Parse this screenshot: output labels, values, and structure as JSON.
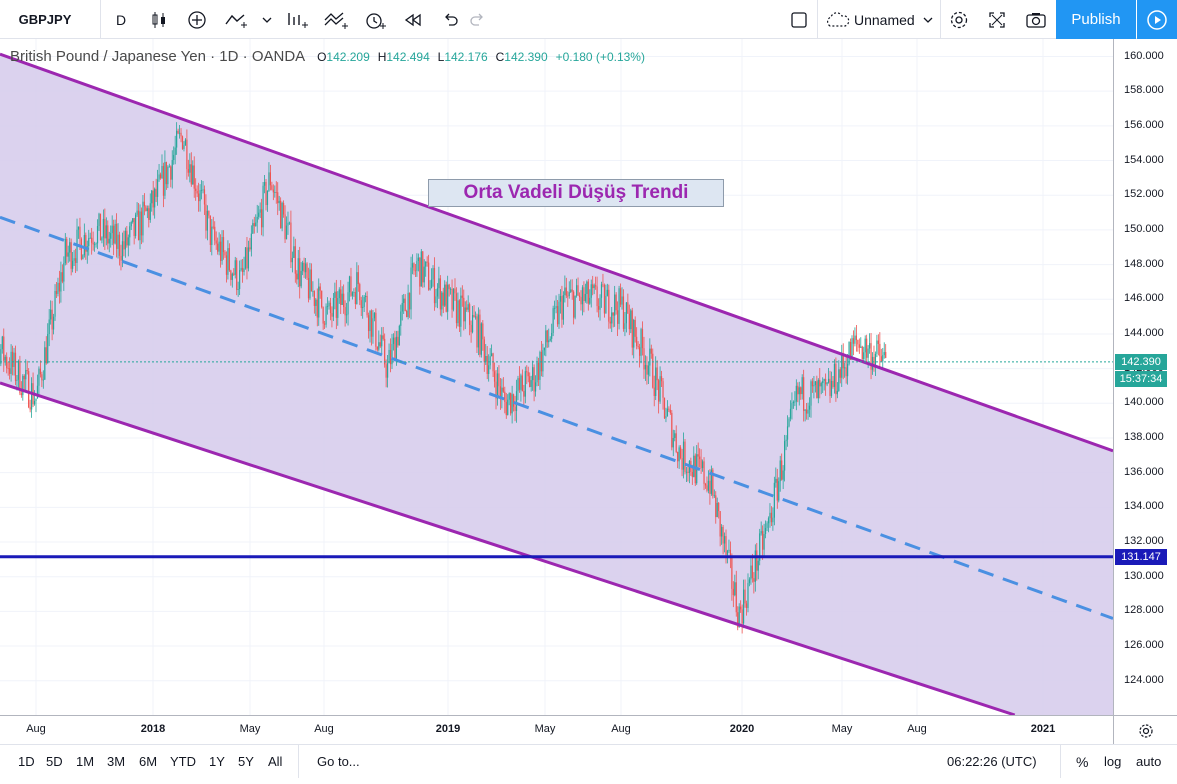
{
  "toolbar": {
    "symbol": "GBPJPY",
    "interval": "D",
    "layout_name": "Unnamed",
    "publish_label": "Publish"
  },
  "legend": {
    "title": "British Pound / Japanese Yen · 1D · OANDA",
    "o_key": "O",
    "o_val": "142.209",
    "h_key": "H",
    "h_val": "142.494",
    "l_key": "L",
    "l_val": "142.176",
    "c_key": "C",
    "c_val": "142.390",
    "change": "+0.180 (+0.13%)"
  },
  "annotation": "Orta Vadeli Düşüş Trendi",
  "price_axis": {
    "ticks": [
      "160.000",
      "158.000",
      "156.000",
      "154.000",
      "152.000",
      "150.000",
      "148.000",
      "146.000",
      "144.000",
      "142.000",
      "140.000",
      "138.000",
      "136.000",
      "134.000",
      "132.000",
      "130.000",
      "128.000",
      "126.000",
      "124.000"
    ],
    "last_price": "142.390",
    "countdown": "15:37:34",
    "hline_price": "131.147"
  },
  "time_axis": [
    "Aug",
    "2018",
    "May",
    "Aug",
    "2019",
    "May",
    "Aug",
    "2020",
    "May",
    "Aug",
    "2021"
  ],
  "bottom": {
    "ranges": [
      "1D",
      "5D",
      "1M",
      "3M",
      "6M",
      "YTD",
      "1Y",
      "5Y",
      "All"
    ],
    "goto": "Go to...",
    "clock": "06:22:26 (UTC)",
    "percent": "%",
    "log": "log",
    "auto": "auto"
  },
  "colors": {
    "up": "#26a69a",
    "down": "#ef5350",
    "channel": "#9c27b0",
    "channel_fill": "#d7cdec",
    "midline": "#4a90e2",
    "hline": "#1a1ab8",
    "accent": "#2196f3"
  },
  "chart_data": {
    "type": "candlestick",
    "symbol": "GBPJPY",
    "ylim": [
      122.5,
      161.0
    ],
    "x_labels": [
      "Aug",
      "2018",
      "May",
      "Aug",
      "2019",
      "May",
      "Aug",
      "2020",
      "May",
      "Aug",
      "2021"
    ],
    "horizontal_line": 131.147,
    "last_price": 142.39,
    "channel": {
      "upper": [
        {
          "date": "2017-06",
          "price": 160.6
        },
        {
          "date": "2018-01",
          "price": 156.8
        },
        {
          "date": "2019-03",
          "price": 148.6
        },
        {
          "date": "2020-01",
          "price": 143.2
        },
        {
          "date": "2021-02",
          "price": 134.1
        }
      ],
      "lower": [
        {
          "date": "2017-06",
          "price": 141.6
        },
        {
          "date": "2018-12",
          "price": 131.1
        },
        {
          "date": "2019-08",
          "price": 126.6
        },
        {
          "date": "2020-04",
          "price": 122.8
        }
      ],
      "mid": [
        {
          "date": "2017-06",
          "price": 151.2
        },
        {
          "date": "2019-06",
          "price": 139.0
        },
        {
          "date": "2021-02",
          "price": 124.4
        }
      ]
    },
    "closes": [
      {
        "date": "2017-06",
        "close": 145.5
      },
      {
        "date": "2017-07",
        "close": 142.5
      },
      {
        "date": "2017-08",
        "close": 140.3
      },
      {
        "date": "2017-09",
        "close": 148.5
      },
      {
        "date": "2017-10",
        "close": 150.0
      },
      {
        "date": "2017-11",
        "close": 149.0
      },
      {
        "date": "2017-12",
        "close": 151.5
      },
      {
        "date": "2018-01",
        "close": 155.5
      },
      {
        "date": "2018-02",
        "close": 149.5
      },
      {
        "date": "2018-03",
        "close": 147.0
      },
      {
        "date": "2018-04",
        "close": 153.0
      },
      {
        "date": "2018-05",
        "close": 147.5
      },
      {
        "date": "2018-06",
        "close": 145.0
      },
      {
        "date": "2018-07",
        "close": 147.0
      },
      {
        "date": "2018-08",
        "close": 142.0
      },
      {
        "date": "2018-09",
        "close": 148.0
      },
      {
        "date": "2018-10",
        "close": 146.0
      },
      {
        "date": "2018-11",
        "close": 144.5
      },
      {
        "date": "2018-12",
        "close": 140.0
      },
      {
        "date": "2019-01",
        "close": 141.5
      },
      {
        "date": "2019-02",
        "close": 146.0
      },
      {
        "date": "2019-03",
        "close": 146.0
      },
      {
        "date": "2019-04",
        "close": 145.5
      },
      {
        "date": "2019-05",
        "close": 142.0
      },
      {
        "date": "2019-06",
        "close": 137.0
      },
      {
        "date": "2019-07",
        "close": 135.5
      },
      {
        "date": "2019-08",
        "close": 127.8
      },
      {
        "date": "2019-09",
        "close": 133.0
      },
      {
        "date": "2019-10",
        "close": 140.5
      },
      {
        "date": "2019-11",
        "close": 140.5
      },
      {
        "date": "2019-12",
        "close": 143.5
      },
      {
        "date": "2020-01",
        "close": 142.4
      }
    ]
  }
}
